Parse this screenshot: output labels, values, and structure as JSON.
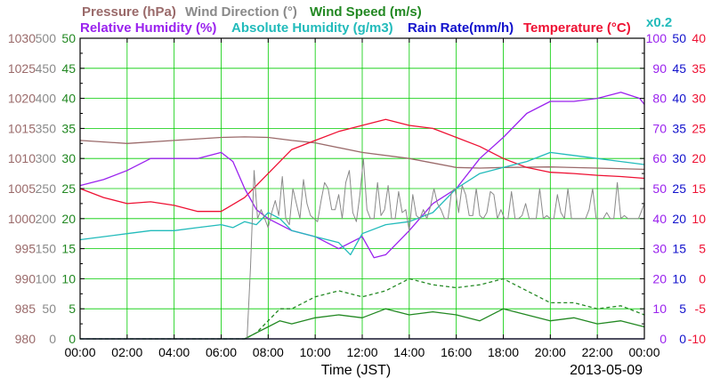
{
  "chart_data": {
    "type": "line",
    "date": "2013-05-09",
    "xlabel": "Time (JST)",
    "x_ticks": [
      "00:00",
      "02:00",
      "04:00",
      "06:00",
      "08:00",
      "10:00",
      "12:00",
      "14:00",
      "16:00",
      "18:00",
      "20:00",
      "22:00",
      "00:00"
    ],
    "x_hours": [
      0,
      2,
      4,
      6,
      8,
      10,
      12,
      14,
      16,
      18,
      20,
      22,
      24
    ],
    "legend_top": [
      {
        "text": "Pressure (hPa)",
        "color": "#9a6a6a"
      },
      {
        "text": "Wind Direction (°)",
        "color": "#8a8a8a"
      },
      {
        "text": "Wind Speed (m/s)",
        "color": "#228822"
      }
    ],
    "legend_bottom": [
      {
        "text": "Relative Humidity (%)",
        "color": "#9a22ee"
      },
      {
        "text": "Absolute Humidity (g/m3)",
        "color": "#22bbbb"
      },
      {
        "text": "Rain Rate(mm/h)",
        "color": "#1111cc"
      },
      {
        "text": "Temperature (°C)",
        "color": "#ee1133"
      }
    ],
    "scale_note": "x0.2",
    "left_axes": [
      {
        "name": "pressure",
        "color": "#9a6a6a",
        "min": 980,
        "max": 1030,
        "ticks": [
          "980",
          "985",
          "990",
          "995",
          "1000",
          "1005",
          "1010",
          "1015",
          "1020",
          "1025",
          "1030"
        ]
      },
      {
        "name": "wind_direction",
        "color": "#8a8a8a",
        "min": 0,
        "max": 500,
        "ticks": [
          "0",
          "50",
          "100",
          "150",
          "200",
          "250",
          "300",
          "350",
          "400",
          "450",
          "500"
        ]
      },
      {
        "name": "wind_speed",
        "color": "#228822",
        "min": 0,
        "max": 50,
        "ticks": [
          "0",
          "5",
          "10",
          "15",
          "20",
          "25",
          "30",
          "35",
          "40",
          "45",
          "50"
        ]
      }
    ],
    "right_axes": [
      {
        "name": "relative_humidity",
        "color": "#9a22ee",
        "min": 0,
        "max": 100,
        "ticks": [
          "0",
          "10",
          "20",
          "30",
          "40",
          "50",
          "60",
          "70",
          "80",
          "90",
          "100"
        ]
      },
      {
        "name": "rain_rate",
        "color": "#1111cc",
        "min": 0,
        "max": 50,
        "ticks": [
          "0",
          "5",
          "10",
          "15",
          "20",
          "25",
          "30",
          "35",
          "40",
          "45",
          "50"
        ]
      },
      {
        "name": "temperature",
        "color": "#ee1133",
        "min": -10,
        "max": 40,
        "ticks": [
          "-10",
          "-5",
          "0",
          "5",
          "10",
          "15",
          "20",
          "25",
          "30",
          "35",
          "40"
        ]
      }
    ],
    "series": [
      {
        "name": "Pressure",
        "axis": "pressure",
        "color": "#9a6a6a",
        "x": [
          0,
          2,
          4,
          6,
          7,
          8,
          9,
          10,
          12,
          14,
          16,
          17,
          18,
          20,
          22,
          24
        ],
        "y": [
          1013,
          1012.5,
          1013,
          1013.5,
          1013.6,
          1013.5,
          1013,
          1012.6,
          1011,
          1010,
          1008.5,
          1008.4,
          1008.5,
          1008.6,
          1008.4,
          1008.2
        ]
      },
      {
        "name": "Temperature",
        "axis": "temperature",
        "color": "#ee1133",
        "x": [
          0,
          1,
          2,
          3,
          4,
          5,
          6,
          7,
          8,
          9,
          10,
          11,
          12,
          13,
          14,
          15,
          16,
          17,
          18,
          19,
          20,
          21,
          22,
          23,
          24
        ],
        "y": [
          15,
          13.5,
          12.5,
          12.8,
          12.2,
          11.2,
          11.2,
          13.5,
          17.5,
          21.5,
          23,
          24.5,
          25.5,
          26.5,
          25.5,
          25,
          23.5,
          22,
          20,
          18.5,
          17.7,
          17.5,
          17.2,
          17,
          16.7
        ]
      },
      {
        "name": "Relative Humidity",
        "axis": "relative_humidity",
        "color": "#9a22ee",
        "x": [
          0,
          1,
          2,
          3,
          4,
          5,
          6,
          6.5,
          7,
          7.5,
          8,
          9,
          10,
          11,
          12,
          12.5,
          13,
          14,
          15,
          16,
          17,
          18,
          19,
          20,
          21,
          22,
          23,
          23.8,
          24
        ],
        "y": [
          51,
          53,
          56,
          60,
          60,
          60,
          62,
          59,
          50,
          43,
          40,
          36,
          34,
          30,
          34,
          27,
          28,
          36,
          45,
          50,
          60,
          67,
          75,
          79,
          79,
          80,
          82,
          80,
          78
        ]
      },
      {
        "name": "Absolute Humidity",
        "axis": "relative_humidity",
        "color": "#22bbbb",
        "x": [
          0,
          1,
          2,
          3,
          4,
          5,
          6,
          6.5,
          7,
          7.5,
          8,
          8.5,
          9,
          10,
          11,
          11.5,
          12,
          13,
          14,
          15,
          16,
          17,
          18,
          19,
          20,
          21,
          22,
          23,
          24
        ],
        "y": [
          33,
          34,
          35,
          36,
          36,
          37,
          38,
          37,
          39,
          38,
          42,
          40,
          36,
          34,
          32,
          28,
          35,
          38,
          39,
          42,
          50,
          55,
          57,
          59,
          62,
          61,
          60,
          59,
          58
        ]
      },
      {
        "name": "Wind Speed",
        "axis": "wind_speed",
        "color": "#228822",
        "x": [
          0,
          2,
          4,
          6,
          7,
          7.5,
          8,
          8.5,
          9,
          10,
          11,
          12,
          13,
          14,
          15,
          16,
          17,
          18,
          19,
          20,
          21,
          22,
          23,
          24
        ],
        "y": [
          0,
          0,
          0,
          0,
          0,
          1,
          2,
          3,
          2.5,
          3.5,
          4,
          3.5,
          5,
          4,
          4.5,
          4,
          3,
          5,
          4,
          3,
          3.5,
          2.5,
          3,
          2
        ]
      },
      {
        "name": "Wind Speed (gust)",
        "axis": "wind_speed",
        "color": "#228822",
        "dashed": true,
        "x": [
          0,
          2,
          4,
          6,
          7,
          7.5,
          8,
          8.5,
          9,
          10,
          11,
          12,
          13,
          14,
          15,
          16,
          17,
          18,
          19,
          20,
          21,
          22,
          23,
          24
        ],
        "y": [
          0,
          0,
          0,
          0,
          0,
          1,
          3,
          5,
          5,
          7,
          8,
          7,
          8,
          10,
          9,
          8.5,
          9,
          10,
          8,
          6,
          6,
          5,
          5.5,
          4
        ]
      },
      {
        "name": "Wind Direction",
        "axis": "wind_direction",
        "color": "#8a8a8a",
        "x": [
          0,
          7.1,
          7.25,
          7.4,
          7.55,
          7.7,
          7.85,
          8.0,
          8.15,
          8.3,
          8.45,
          8.6,
          8.75,
          8.9,
          9.05,
          9.2,
          9.35,
          9.5,
          9.65,
          9.8,
          9.95,
          10.1,
          10.25,
          10.4,
          10.55,
          10.7,
          10.85,
          11.0,
          11.15,
          11.3,
          11.45,
          11.6,
          11.75,
          11.9,
          12.05,
          12.2,
          12.35,
          12.5,
          12.65,
          12.8,
          12.95,
          13.1,
          13.25,
          13.4,
          13.55,
          13.7,
          13.85,
          14.0,
          14.15,
          14.3,
          14.45,
          14.6,
          14.75,
          14.9,
          15.05,
          15.2,
          15.35,
          15.5,
          15.65,
          15.8,
          15.95,
          16.1,
          16.25,
          16.4,
          16.55,
          16.7,
          16.85,
          17.0,
          17.15,
          17.3,
          17.45,
          17.6,
          17.75,
          17.9,
          18.05,
          18.2,
          18.35,
          18.5,
          18.65,
          18.8,
          18.95,
          19.1,
          19.25,
          19.4,
          19.55,
          19.7,
          19.85,
          20.0,
          20.15,
          20.3,
          20.45,
          20.6,
          20.75,
          20.9,
          21.05,
          21.2,
          21.35,
          21.5,
          21.65,
          21.8,
          21.95,
          22.1,
          22.25,
          22.4,
          22.55,
          22.7,
          22.85,
          23.0,
          23.15,
          23.3,
          23.45,
          23.6,
          23.75,
          23.9,
          24.0
        ],
        "y": [
          0,
          0,
          120,
          280,
          200,
          215,
          200,
          185,
          210,
          230,
          205,
          270,
          200,
          190,
          250,
          225,
          200,
          265,
          225,
          205,
          200,
          195,
          230,
          260,
          250,
          215,
          215,
          240,
          200,
          260,
          280,
          210,
          195,
          240,
          300,
          215,
          200,
          200,
          260,
          205,
          215,
          255,
          200,
          200,
          245,
          210,
          215,
          180,
          240,
          205,
          200,
          215,
          200,
          220,
          250,
          225,
          215,
          200,
          200,
          245,
          250,
          210,
          255,
          240,
          205,
          205,
          250,
          205,
          200,
          210,
          245,
          240,
          200,
          215,
          200,
          200,
          245,
          200,
          200,
          205,
          225,
          200,
          200,
          200,
          250,
          200,
          205,
          200,
          200,
          240,
          210,
          200,
          250,
          200,
          200,
          200,
          200,
          200,
          215,
          250,
          200,
          200,
          200,
          210,
          200,
          200,
          260,
          200,
          205,
          200,
          200,
          200,
          200,
          215,
          225
        ]
      },
      {
        "name": "Rain Rate",
        "axis": "rain_rate",
        "color": "#1111cc",
        "x": [
          0,
          24
        ],
        "y": [
          0,
          0
        ]
      }
    ]
  }
}
